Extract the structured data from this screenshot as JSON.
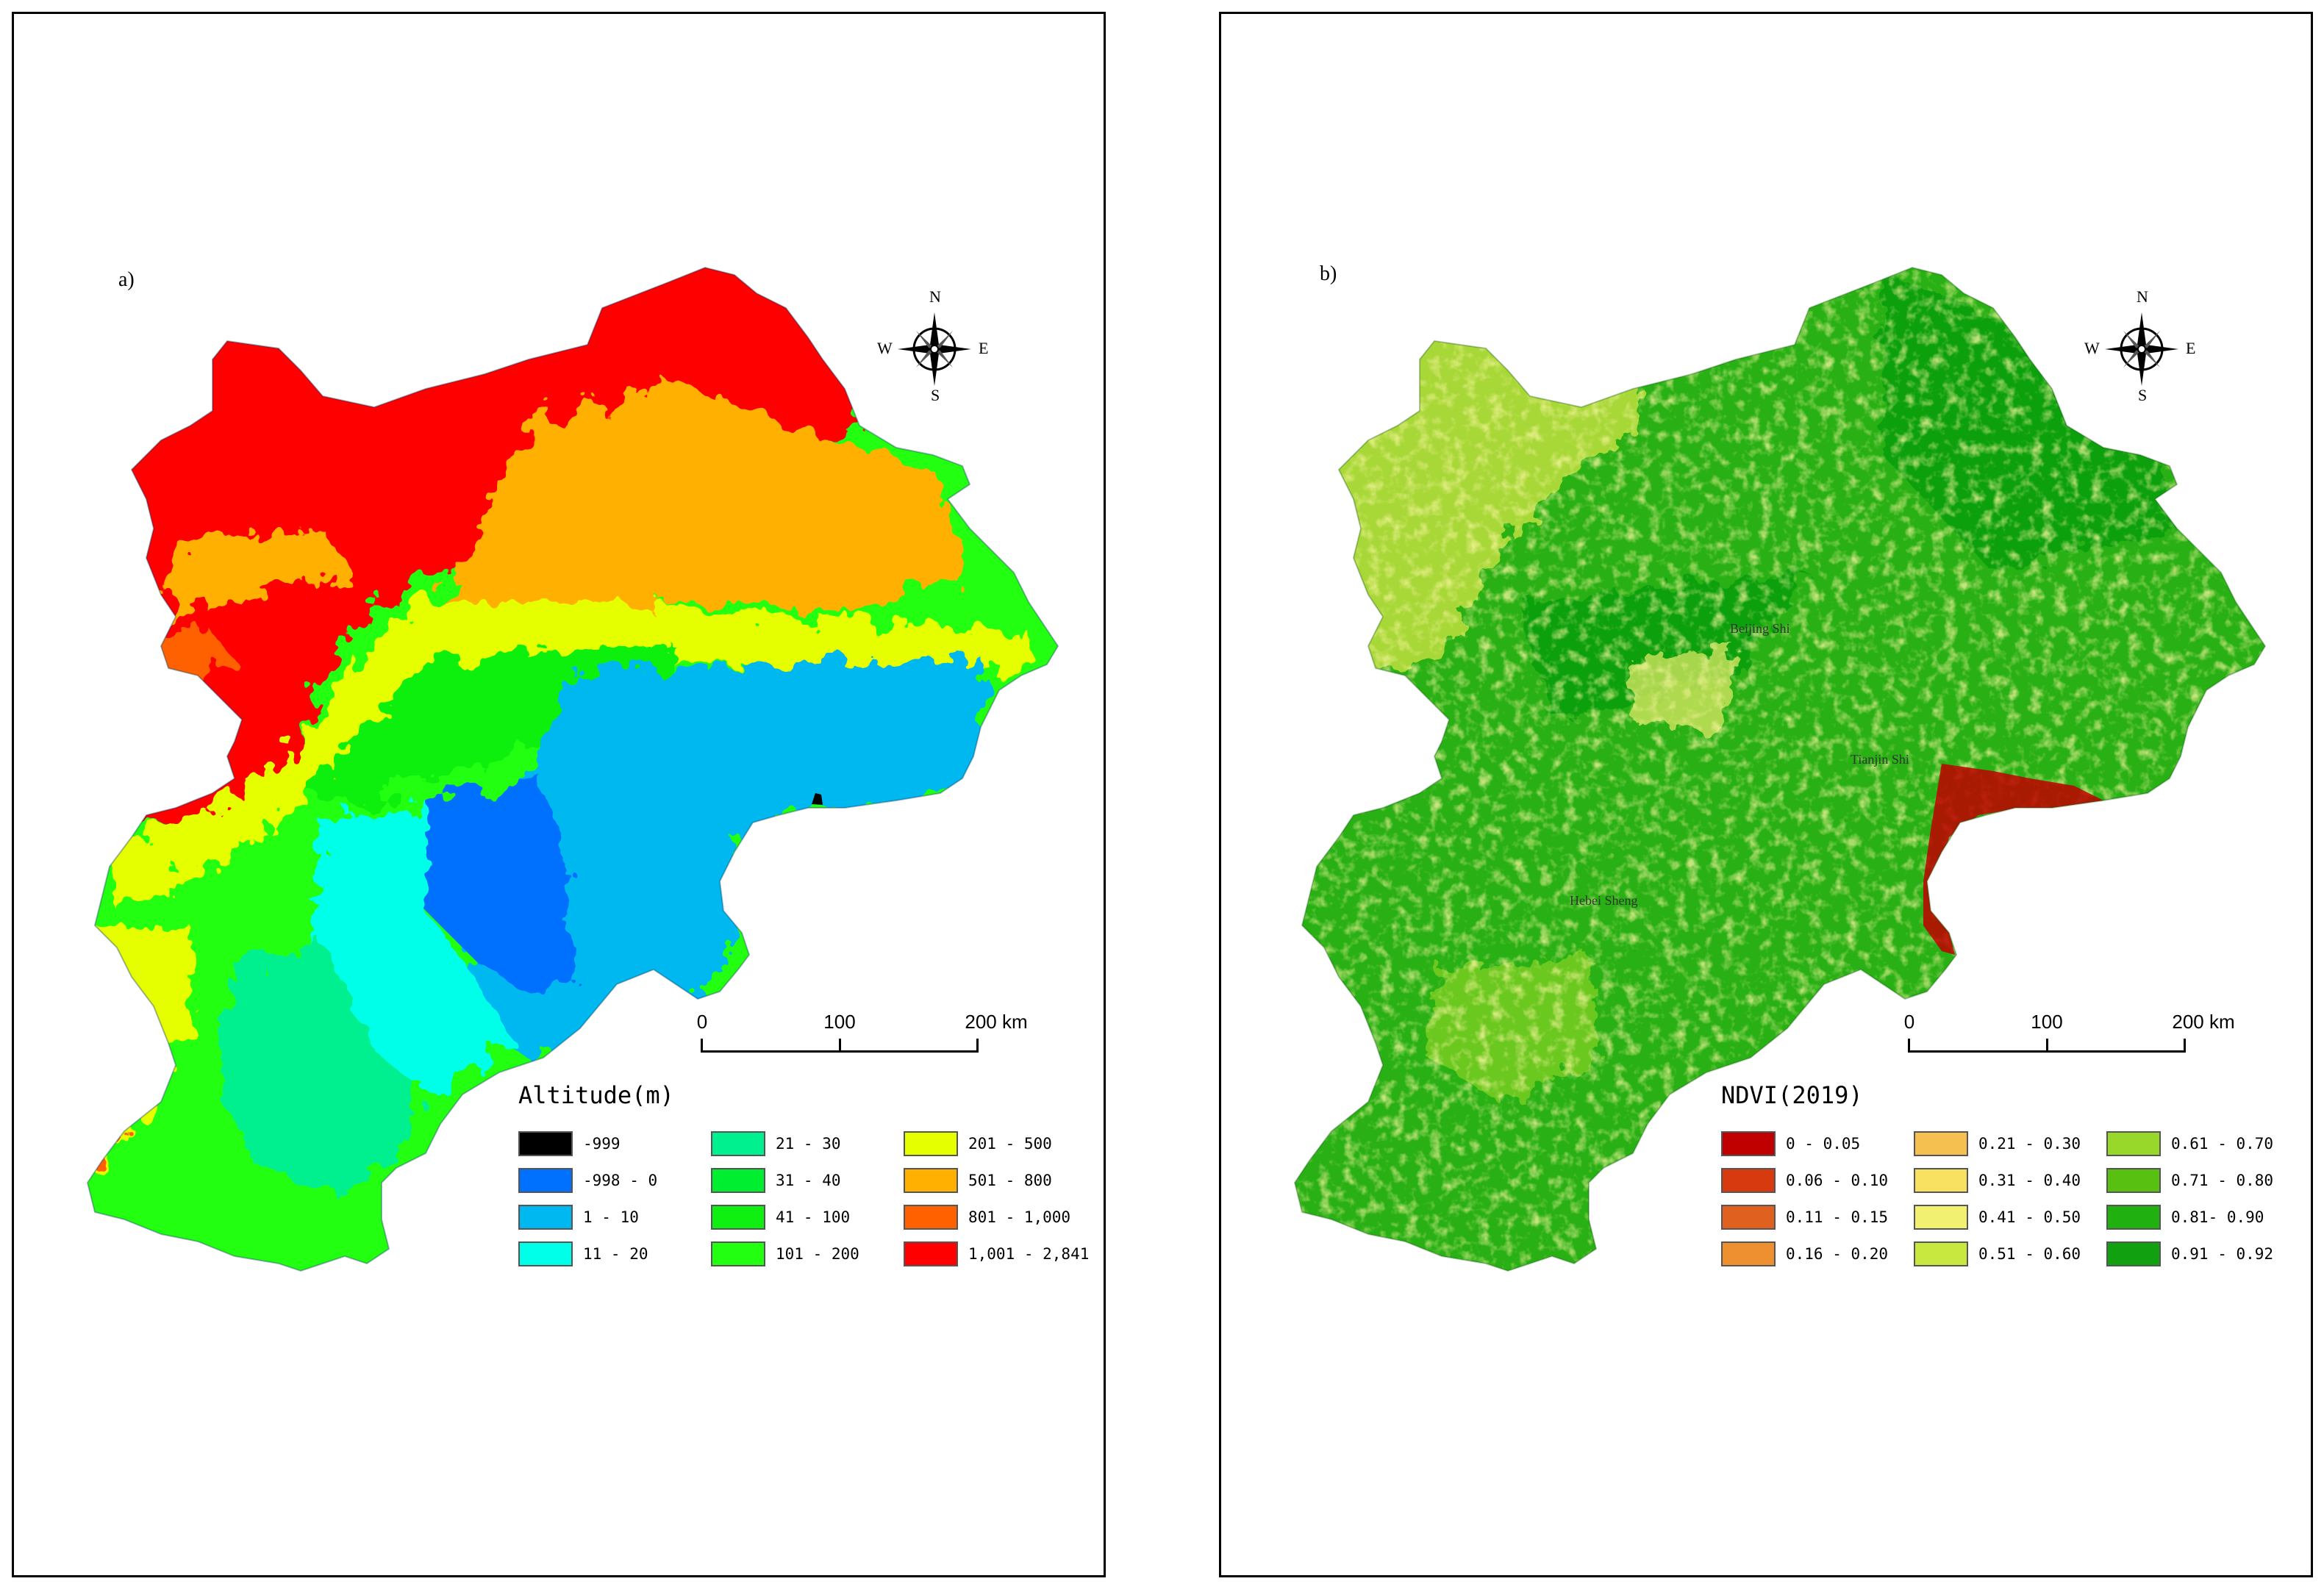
{
  "panels": {
    "a": {
      "label": "a)",
      "legend_title": "Altitude(m)",
      "legend": [
        {
          "label": "-999",
          "color": "#000000"
        },
        {
          "label": "-998 - 0",
          "color": "#0070ff"
        },
        {
          "label": "1 - 10",
          "color": "#00b8f0"
        },
        {
          "label": "11 - 20",
          "color": "#00ffe8"
        },
        {
          "label": "21 - 30",
          "color": "#00f090"
        },
        {
          "label": "31 - 40",
          "color": "#00ee30"
        },
        {
          "label": "41 - 100",
          "color": "#10f010"
        },
        {
          "label": "101 - 200",
          "color": "#22ff11"
        },
        {
          "label": "201 - 500",
          "color": "#e6ff00"
        },
        {
          "label": "501 - 800",
          "color": "#ffb000"
        },
        {
          "label": "801 - 1,000",
          "color": "#ff6000"
        },
        {
          "label": "1,001 - 2,841",
          "color": "#ff0000"
        }
      ]
    },
    "b": {
      "label": "b)",
      "legend_title": "NDVI(2019)",
      "legend": [
        {
          "label": "0 - 0.05",
          "color": "#c00000"
        },
        {
          "label": "0.06 - 0.10",
          "color": "#d83a10"
        },
        {
          "label": "0.11 - 0.15",
          "color": "#e06020"
        },
        {
          "label": "0.16 - 0.20",
          "color": "#ee9030"
        },
        {
          "label": "0.21 - 0.30",
          "color": "#f5c050"
        },
        {
          "label": "0.31 - 0.40",
          "color": "#f8e060"
        },
        {
          "label": "0.41 - 0.50",
          "color": "#f2f070"
        },
        {
          "label": "0.51 - 0.60",
          "color": "#c8e840"
        },
        {
          "label": "0.61 - 0.70",
          "color": "#98d82a"
        },
        {
          "label": "0.71 - 0.80",
          "color": "#58c010"
        },
        {
          "label": "0.81- 0.90",
          "color": "#20b010"
        },
        {
          "label": "0.91 - 0.92",
          "color": "#10a010"
        }
      ],
      "places": {
        "beijing": "Beijing Shi",
        "tianjin": "Tianjin Shi",
        "hebei": "Hebei Sheng"
      }
    }
  },
  "compass": {
    "n": "N",
    "s": "S",
    "e": "E",
    "w": "W"
  },
  "scale": {
    "ticks": [
      "0",
      "100",
      "200 km"
    ]
  }
}
